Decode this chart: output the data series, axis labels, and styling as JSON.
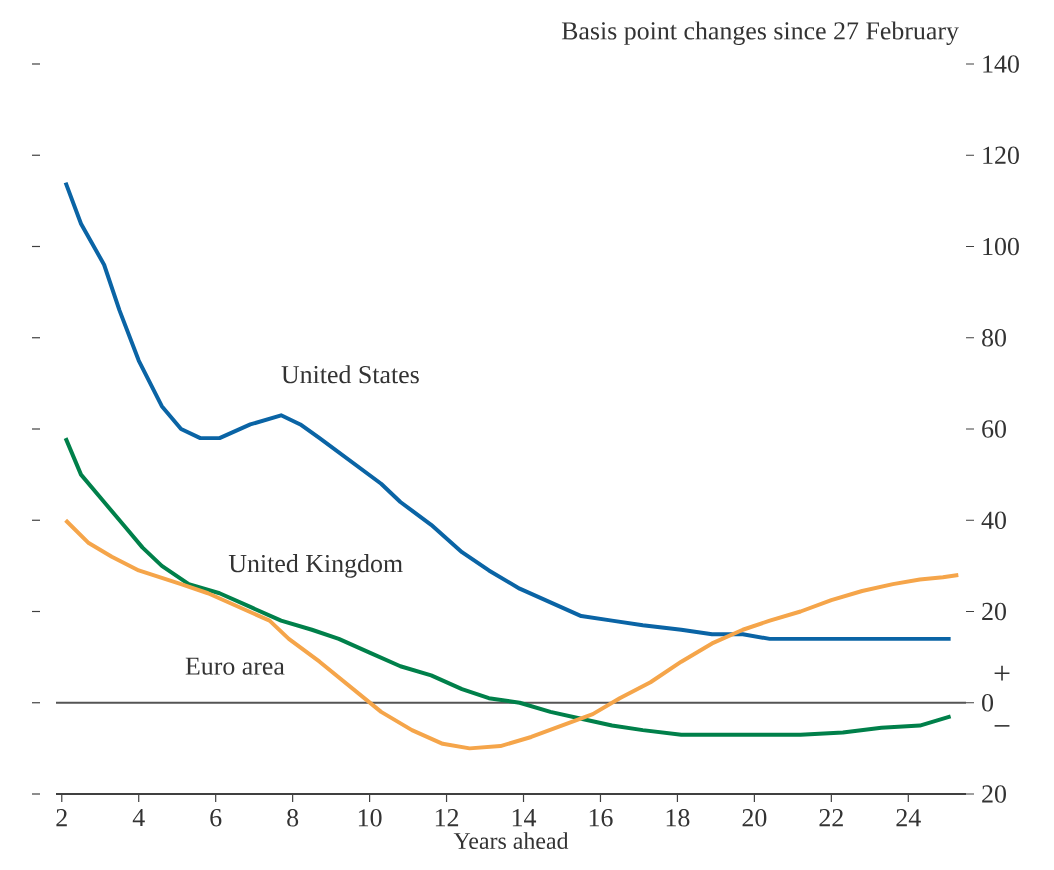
{
  "chart_data": {
    "type": "line",
    "ylabel": "Basis point changes since 27 February",
    "xlabel": "Years ahead",
    "xlim": [
      1.85,
      25.5
    ],
    "xticks": [
      2,
      4,
      6,
      8,
      10,
      12,
      14,
      16,
      18,
      20,
      22,
      24
    ],
    "ylim": [
      -20,
      140
    ],
    "yticks": [
      {
        "value": -20,
        "label": "20"
      },
      0,
      20,
      40,
      60,
      80,
      100,
      120,
      140
    ],
    "ref_lines": [
      {
        "axis": "y",
        "value": 0,
        "color": "#555555"
      }
    ],
    "annotations": [
      "+",
      "−"
    ],
    "series": [
      {
        "name": "United States",
        "color": "#0a64a5",
        "x": [
          2.1,
          2.5,
          3.1,
          3.5,
          4.0,
          4.6,
          5.1,
          5.6,
          6.1,
          6.9,
          7.7,
          8.2,
          8.7,
          9.5,
          10.3,
          10.8,
          11.6,
          12.4,
          13.1,
          13.9,
          14.7,
          15.5,
          16.3,
          17.1,
          18.1,
          18.9,
          19.7,
          20.4,
          21.2,
          22.0,
          22.8,
          23.8,
          25.1
        ],
        "values": [
          114,
          105,
          96,
          86,
          75,
          65,
          60,
          58,
          58,
          61,
          63,
          61,
          58,
          53,
          48,
          44,
          39,
          33,
          29,
          25,
          22,
          19,
          18,
          17,
          16,
          15,
          15,
          14,
          14,
          14,
          14,
          14,
          14
        ]
      },
      {
        "name": "United Kingdom",
        "color": "#00804a",
        "x": [
          2.1,
          2.5,
          3.1,
          3.6,
          4.1,
          4.6,
          5.3,
          6.1,
          6.9,
          7.7,
          8.5,
          9.2,
          10.0,
          10.8,
          11.6,
          12.4,
          13.1,
          13.9,
          14.7,
          15.5,
          16.3,
          17.1,
          18.1,
          19.1,
          20.2,
          21.2,
          22.3,
          23.3,
          24.3,
          25.1
        ],
        "values": [
          58,
          50,
          44,
          39,
          34,
          30,
          26,
          24,
          21,
          18,
          16,
          14,
          11,
          8,
          6,
          3,
          1,
          0,
          -2,
          -3.5,
          -5,
          -6,
          -7,
          -7,
          -7,
          -7,
          -6.5,
          -5.5,
          -5,
          -3
        ]
      },
      {
        "name": "Euro area",
        "color": "#f5a54a",
        "x": [
          2.1,
          2.7,
          3.3,
          4.0,
          5.1,
          5.8,
          6.6,
          7.4,
          7.9,
          8.7,
          9.5,
          10.3,
          11.1,
          11.9,
          12.6,
          13.4,
          14.2,
          15.0,
          15.8,
          16.5,
          17.3,
          18.1,
          18.9,
          19.7,
          20.4,
          21.2,
          22.0,
          22.8,
          23.6,
          24.3,
          24.9,
          25.3
        ],
        "values": [
          40,
          35,
          32,
          29,
          26,
          24,
          21,
          18,
          14,
          9,
          3.5,
          -2,
          -6,
          -9,
          -10,
          -9.5,
          -7.5,
          -5,
          -2.5,
          1,
          4.5,
          9,
          13,
          16,
          18,
          20,
          22.5,
          24.5,
          26,
          27,
          27.5,
          28
        ]
      }
    ]
  }
}
